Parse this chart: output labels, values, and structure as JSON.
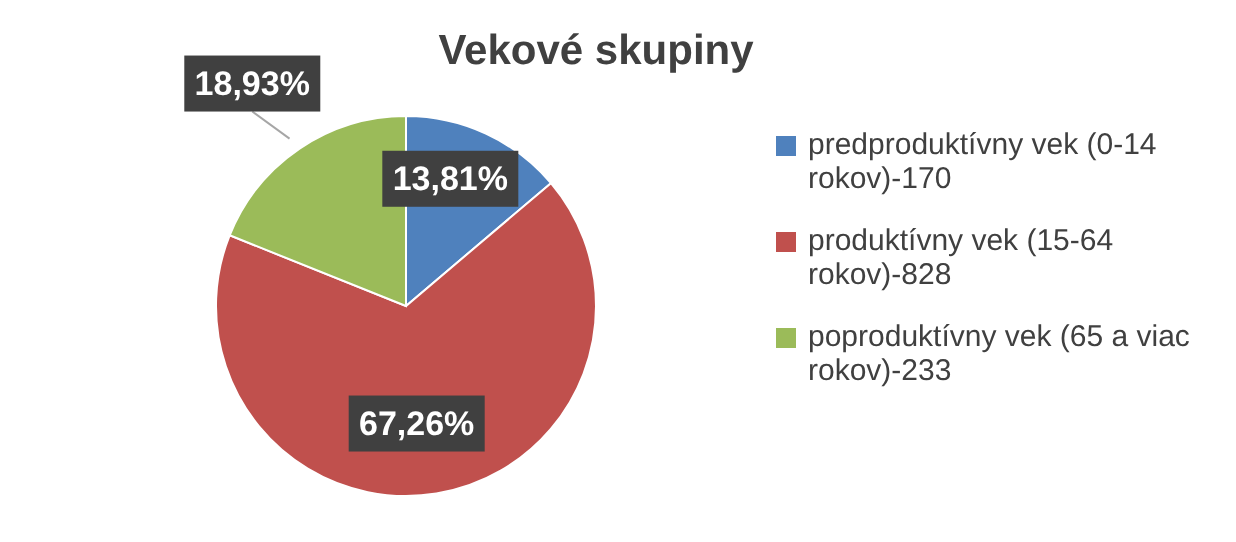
{
  "chart_data": {
    "type": "pie",
    "title": "Vekové skupiny",
    "categories": [
      "predproduktívny vek (0-14 rokov)-170",
      "produktívny vek (15-64 rokov)-828",
      "poproduktívny vek (65 a viac rokov)-233"
    ],
    "values": [
      13.81,
      67.26,
      18.93
    ],
    "colors": [
      "#4f81bd",
      "#c0504d",
      "#9bbb59"
    ],
    "value_labels": [
      "13,81%",
      "67,26%",
      "18,93%"
    ],
    "legend": "right"
  }
}
